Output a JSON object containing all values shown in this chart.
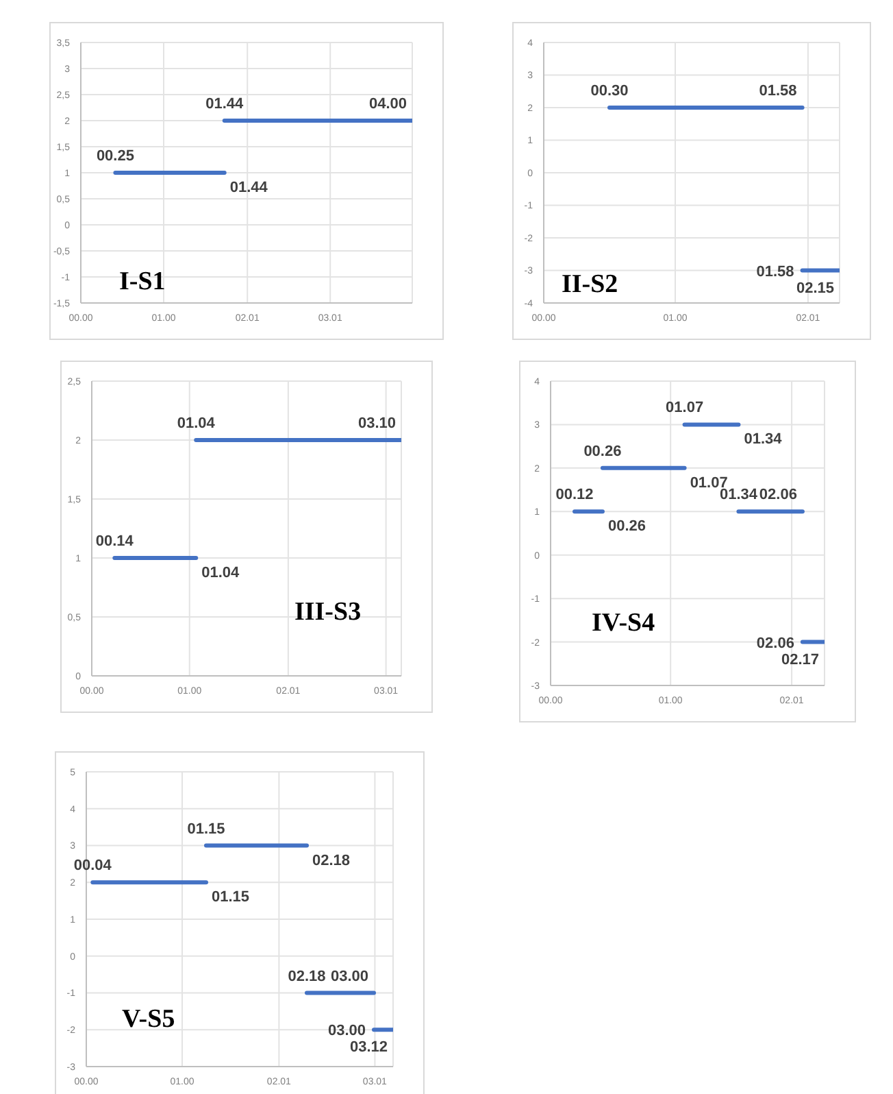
{
  "chart_data": [
    {
      "type": "line",
      "title": "I-S1",
      "xlim": [
        0,
        4.0
      ],
      "xticks": [
        {
          "value": 0,
          "label": "00.00"
        },
        {
          "value": 1.0,
          "label": "01.00"
        },
        {
          "value": 2.01,
          "label": "02.01"
        },
        {
          "value": 3.01,
          "label": "03.01"
        }
      ],
      "ylim": [
        -1.5,
        3.5
      ],
      "yticks": [
        {
          "value": -1.5,
          "label": "-1,5"
        },
        -1,
        {
          "value": -0.5,
          "label": "-0,5"
        },
        0,
        {
          "value": 0.5,
          "label": "0,5"
        },
        1,
        {
          "value": 1.5,
          "label": "1,5"
        },
        2,
        {
          "value": 2.5,
          "label": "2,5"
        },
        3,
        {
          "value": 3.5,
          "label": "3,5"
        }
      ],
      "grid": true,
      "marker": "none",
      "series": [
        {
          "color": "#4472c4",
          "x": [
            0.4167,
            1.7333
          ],
          "values": [
            1,
            1
          ]
        },
        {
          "color": "#4472c4",
          "x": [
            1.7333,
            4.0
          ],
          "values": [
            2,
            2
          ]
        }
      ],
      "annotations": [
        {
          "text": "00.25",
          "x": 0.4167,
          "y": 1
        },
        {
          "text": "01.44",
          "x": 1.7333,
          "y": 1
        },
        {
          "text": "01.44",
          "x": 1.7333,
          "y": 2
        },
        {
          "text": "04.00",
          "x": 4.0,
          "y": 2
        }
      ]
    },
    {
      "type": "line",
      "title": "II-S2",
      "xlim": [
        0,
        2.25
      ],
      "xticks": [
        {
          "value": 0,
          "label": "00.00"
        },
        {
          "value": 1.0,
          "label": "01.00"
        },
        {
          "value": 2.01,
          "label": "02.01"
        }
      ],
      "ylim": [
        -4,
        4
      ],
      "yticks": [
        -4,
        -3,
        -2,
        -1,
        0,
        1,
        2,
        3,
        4
      ],
      "grid": true,
      "marker": "none",
      "series": [
        {
          "color": "#4472c4",
          "x": [
            0.5,
            1.9667
          ],
          "values": [
            2,
            2
          ]
        },
        {
          "color": "#4472c4",
          "x": [
            1.9667,
            2.25
          ],
          "values": [
            -3,
            -3
          ]
        }
      ],
      "annotations": [
        {
          "text": "00.30",
          "x": 0.5,
          "y": 2
        },
        {
          "text": "01.58",
          "x": 1.9667,
          "y": 2
        },
        {
          "text": "01.58",
          "x": 1.9667,
          "y": -3
        },
        {
          "text": "02.15",
          "x": 2.25,
          "y": -3
        }
      ]
    },
    {
      "type": "line",
      "title": "III-S3",
      "xlim": [
        0,
        3.1667
      ],
      "xticks": [
        {
          "value": 0,
          "label": "00.00"
        },
        {
          "value": 1.0,
          "label": "01.00"
        },
        {
          "value": 2.01,
          "label": "02.01"
        },
        {
          "value": 3.01,
          "label": "03.01"
        }
      ],
      "ylim": [
        0,
        2.5
      ],
      "yticks": [
        0,
        {
          "value": 0.5,
          "label": "0,5"
        },
        1,
        {
          "value": 1.5,
          "label": "1,5"
        },
        2,
        {
          "value": 2.5,
          "label": "2,5"
        }
      ],
      "grid": true,
      "marker": "none",
      "series": [
        {
          "color": "#4472c4",
          "x": [
            0.2333,
            1.0667
          ],
          "values": [
            1,
            1
          ]
        },
        {
          "color": "#4472c4",
          "x": [
            1.0667,
            3.1667
          ],
          "values": [
            2,
            2
          ]
        }
      ],
      "annotations": [
        {
          "text": "00.14",
          "x": 0.2333,
          "y": 1
        },
        {
          "text": "01.04",
          "x": 1.0667,
          "y": 1
        },
        {
          "text": "01.04",
          "x": 1.0667,
          "y": 2
        },
        {
          "text": "03.10",
          "x": 3.1667,
          "y": 2
        }
      ]
    },
    {
      "type": "line",
      "title": "IV-S4",
      "xlim": [
        0,
        2.2833
      ],
      "xticks": [
        {
          "value": 0,
          "label": "00.00"
        },
        {
          "value": 1.0,
          "label": "01.00"
        },
        {
          "value": 2.01,
          "label": "02.01"
        }
      ],
      "ylim": [
        -3,
        4
      ],
      "yticks": [
        -3,
        -2,
        -1,
        0,
        1,
        2,
        3,
        4
      ],
      "grid": true,
      "marker": "none",
      "series": [
        {
          "color": "#4472c4",
          "x": [
            0.2,
            0.4333
          ],
          "values": [
            1,
            1
          ]
        },
        {
          "color": "#4472c4",
          "x": [
            0.4333,
            1.1167
          ],
          "values": [
            2,
            2
          ]
        },
        {
          "color": "#4472c4",
          "x": [
            1.1167,
            1.5667
          ],
          "values": [
            3,
            3
          ]
        },
        {
          "color": "#4472c4",
          "x": [
            1.5667,
            2.1
          ],
          "values": [
            1,
            1
          ]
        },
        {
          "color": "#4472c4",
          "x": [
            2.1,
            2.2833
          ],
          "values": [
            -2,
            -2
          ]
        }
      ],
      "annotations": [
        {
          "text": "00.12",
          "x": 0.2,
          "y": 1
        },
        {
          "text": "00.26",
          "x": 0.4333,
          "y": 1
        },
        {
          "text": "00.26",
          "x": 0.4333,
          "y": 2
        },
        {
          "text": "01.07",
          "x": 1.1167,
          "y": 2
        },
        {
          "text": "01.07",
          "x": 1.1167,
          "y": 3
        },
        {
          "text": "01.34",
          "x": 1.5667,
          "y": 3
        },
        {
          "text": "01.34",
          "x": 1.5667,
          "y": 1
        },
        {
          "text": "02.06",
          "x": 2.1,
          "y": 1
        },
        {
          "text": "02.06",
          "x": 2.1,
          "y": -2
        },
        {
          "text": "02.17",
          "x": 2.2833,
          "y": -2
        }
      ]
    },
    {
      "type": "line",
      "title": "V-S5",
      "xlim": [
        0,
        3.2
      ],
      "xticks": [
        {
          "value": 0,
          "label": "00.00"
        },
        {
          "value": 1.0,
          "label": "01.00"
        },
        {
          "value": 2.01,
          "label": "02.01"
        },
        {
          "value": 3.01,
          "label": "03.01"
        }
      ],
      "ylim": [
        -3,
        5
      ],
      "yticks": [
        -3,
        -2,
        -1,
        0,
        1,
        2,
        3,
        4,
        5
      ],
      "grid": true,
      "marker": "none",
      "series": [
        {
          "color": "#4472c4",
          "x": [
            0.0667,
            1.25
          ],
          "values": [
            2,
            2
          ]
        },
        {
          "color": "#4472c4",
          "x": [
            1.25,
            2.3
          ],
          "values": [
            3,
            3
          ]
        },
        {
          "color": "#4472c4",
          "x": [
            2.3,
            3.0
          ],
          "values": [
            -1,
            -1
          ]
        },
        {
          "color": "#4472c4",
          "x": [
            3.0,
            3.2
          ],
          "values": [
            -2,
            -2
          ]
        }
      ],
      "annotations": [
        {
          "text": "00.04",
          "x": 0.0667,
          "y": 2
        },
        {
          "text": "01.15",
          "x": 1.25,
          "y": 2
        },
        {
          "text": "01.15",
          "x": 1.25,
          "y": 3
        },
        {
          "text": "02.18",
          "x": 2.3,
          "y": 3
        },
        {
          "text": "02.18",
          "x": 2.3,
          "y": -1
        },
        {
          "text": "03.00",
          "x": 3.0,
          "y": -1
        },
        {
          "text": "03.00",
          "x": 3.0,
          "y": -2
        },
        {
          "text": "03.12",
          "x": 3.2,
          "y": -2
        }
      ]
    }
  ]
}
